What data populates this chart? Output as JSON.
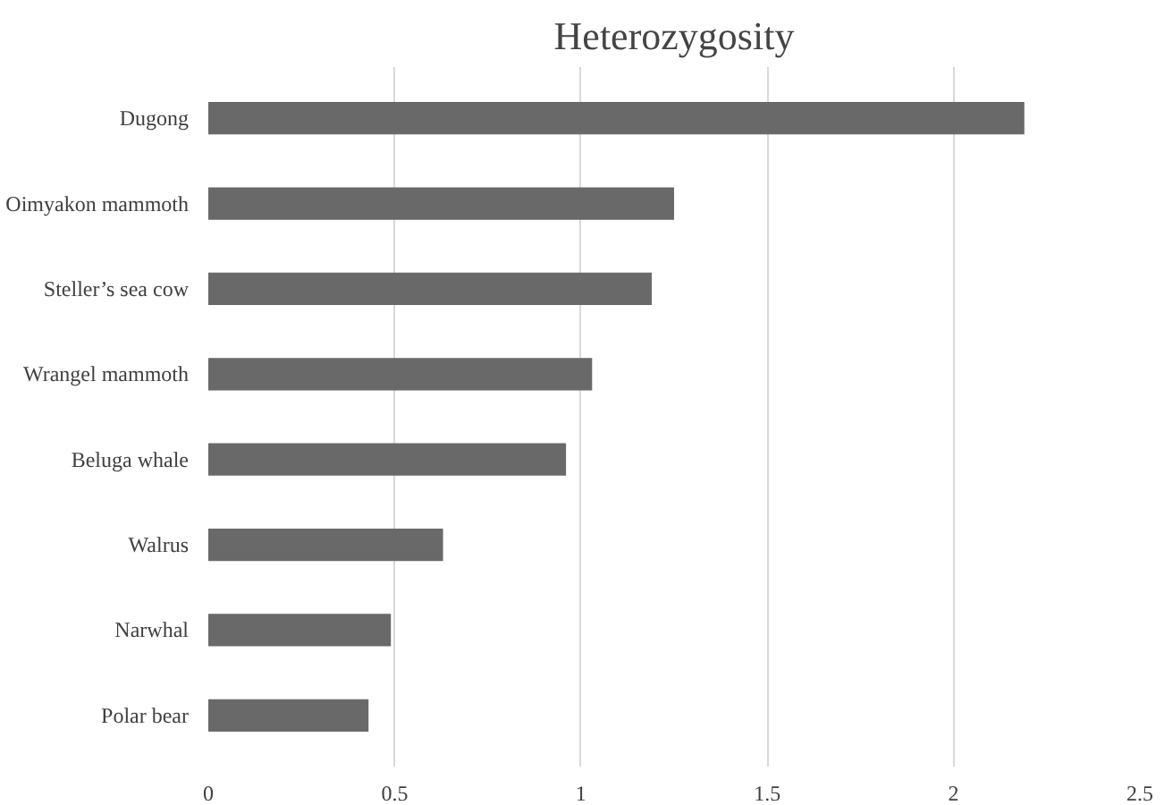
{
  "chart_data": {
    "type": "bar",
    "title": "Heterozygosity",
    "orientation": "horizontal",
    "categories": [
      "Dugong",
      "Oimyakon mammoth",
      "Steller’s sea cow",
      "Wrangel mammoth",
      "Beluga whale",
      "Walrus",
      "Narwhal",
      "Polar bear"
    ],
    "values": [
      2.19,
      1.25,
      1.19,
      1.03,
      0.96,
      0.63,
      0.49,
      0.43
    ],
    "color": "#696969",
    "xlim": [
      0,
      2.5
    ],
    "xticks": [
      0,
      0.5,
      1,
      1.5,
      2,
      2.5
    ],
    "grid": "x"
  }
}
